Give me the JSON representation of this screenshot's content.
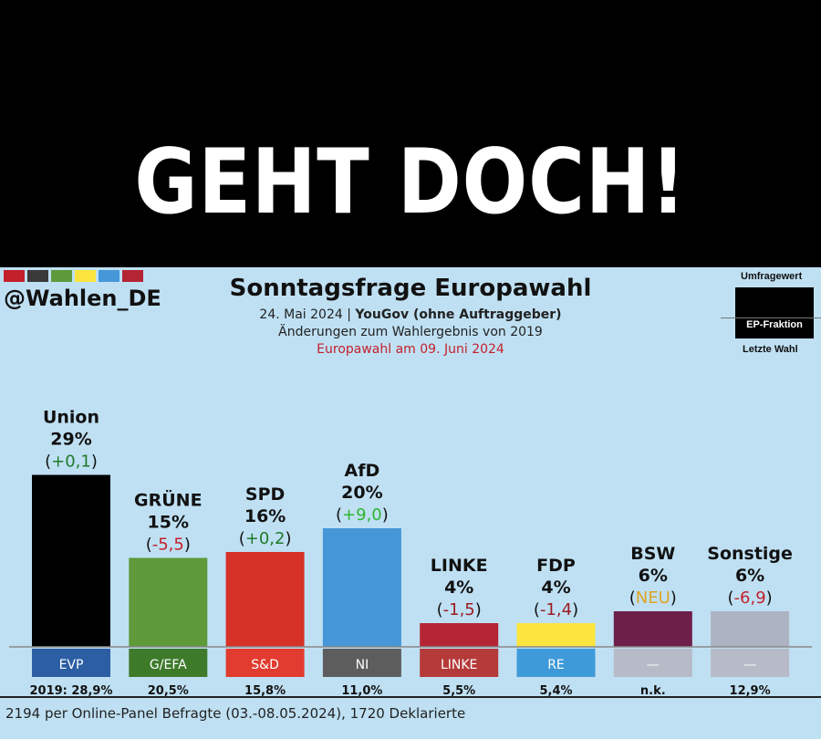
{
  "headline": "GEHT DOCH!",
  "handle": "@Wahlen_DE",
  "chart_data": {
    "type": "bar",
    "title": "Sonntagsfrage Europawahl",
    "date": "24. Mai 2024",
    "source": "YouGov (ohne Auftraggeber)",
    "subtitle": "Änderungen zum Wahlergebnis von 2019",
    "election_note": "Europawahl am 09. Juni 2024",
    "legend": {
      "top": "Umfragewert",
      "middle": "EP-Fraktion",
      "bottom": "Letzte Wahl"
    },
    "unit": "%",
    "ylim": [
      0,
      30
    ],
    "parties": [
      {
        "name": "Union",
        "value": 29,
        "value_label": "29%",
        "change": "(+0,1)",
        "change_color": "#1e7a2a",
        "fraction": "EVP",
        "previous": "2019: 28,9%",
        "color": "#000000",
        "fraction_color": "#2b5ea3"
      },
      {
        "name": "GRÜNE",
        "value": 15,
        "value_label": "15%",
        "change": "(-5,5)",
        "change_color": "#c4202c",
        "fraction": "G/EFA",
        "previous": "20,5%",
        "color": "#5e9a3a",
        "fraction_color": "#3d7a2a"
      },
      {
        "name": "SPD",
        "value": 16,
        "value_label": "16%",
        "change": "(+0,2)",
        "change_color": "#1e7a2a",
        "fraction": "S&D",
        "previous": "15,8%",
        "color": "#d63228",
        "fraction_color": "#e23b2f"
      },
      {
        "name": "AfD",
        "value": 20,
        "value_label": "20%",
        "change": "(+9,0)",
        "change_color": "#2fb52f",
        "fraction": "NI",
        "previous": "11,0%",
        "color": "#4597d8",
        "fraction_color": "#5d5d5d"
      },
      {
        "name": "LINKE",
        "value": 4,
        "value_label": "4%",
        "change": "(-1,5)",
        "change_color": "#9b1c22",
        "fraction": "LINKE",
        "previous": "5,5%",
        "color": "#b42534",
        "fraction_color": "#b53a3a"
      },
      {
        "name": "FDP",
        "value": 4,
        "value_label": "4%",
        "change": "(-1,4)",
        "change_color": "#9b1c22",
        "fraction": "RE",
        "previous": "5,4%",
        "color": "#fbe43e",
        "fraction_color": "#3f9ad9"
      },
      {
        "name": "BSW",
        "value": 6,
        "value_label": "6%",
        "change": "(NEU)",
        "change_color": "#e0a323",
        "fraction": "—",
        "previous": "n.k.",
        "color": "#6d1f4a",
        "fraction_color": "#b7bac7"
      },
      {
        "name": "Sonstige",
        "value": 6,
        "value_label": "6%",
        "change": "(-6,9)",
        "change_color": "#c4202c",
        "fraction": "—",
        "previous": "12,9%",
        "color": "#aeb3c4",
        "fraction_color": "#b7bac7"
      }
    ],
    "footnote": "2194 per Online-Panel Befragte (03.-08.05.2024), 1720 Deklarierte"
  },
  "swatch_colors": [
    "#c4202c",
    "#3a3a3a",
    "#5e9a3a",
    "#fbe43e",
    "#4597d8",
    "#b42534"
  ]
}
